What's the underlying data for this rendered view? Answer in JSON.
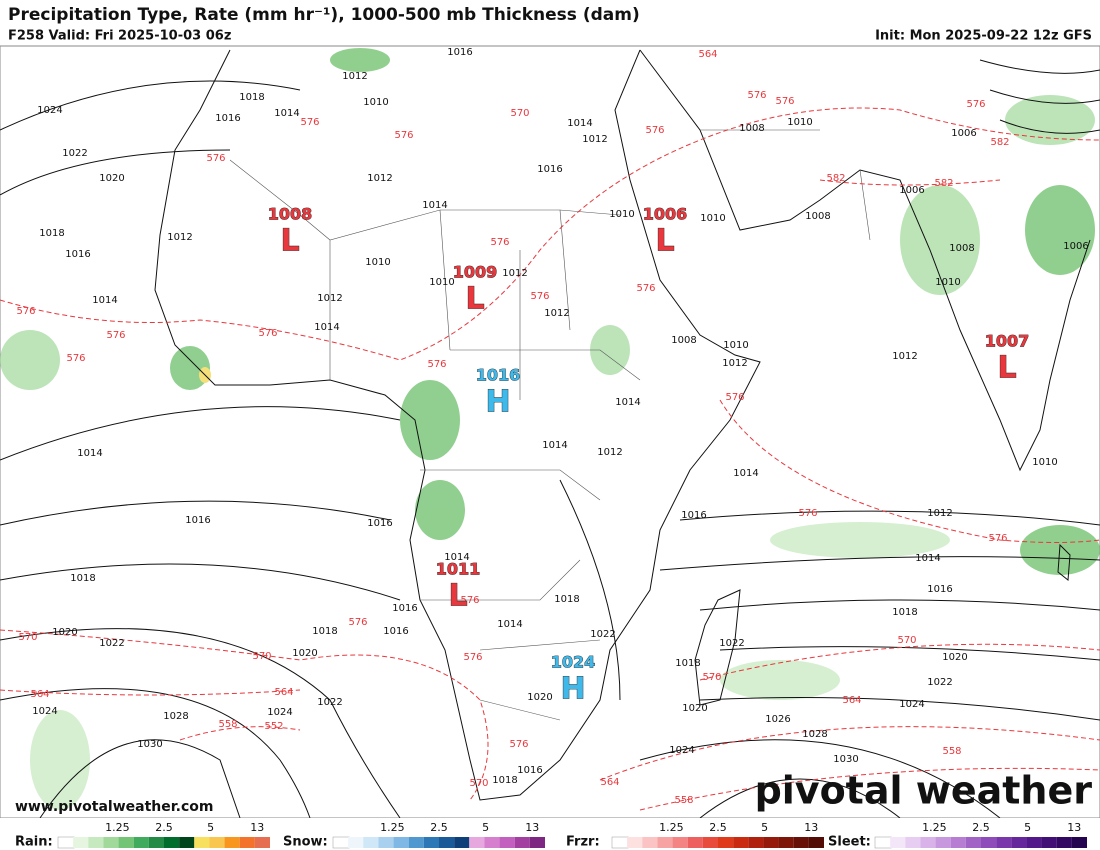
{
  "header": {
    "title": "Precipitation Type, Rate (mm hr⁻¹), 1000-500 mb Thickness (dam)",
    "valid": "F258 Valid: Fri 2025-10-03 06z",
    "init": "Init: Mon 2025-09-22 12z GFS"
  },
  "centers": [
    {
      "type": "L",
      "value": "1008"
    },
    {
      "type": "L",
      "value": "1006"
    },
    {
      "type": "L",
      "value": "1009"
    },
    {
      "type": "L",
      "value": "1007"
    },
    {
      "type": "H",
      "value": "1016"
    },
    {
      "type": "L",
      "value": "1011"
    },
    {
      "type": "H",
      "value": "1024"
    }
  ],
  "isobar_labels": [
    "1024",
    "1022",
    "1020",
    "1018",
    "1016",
    "1014",
    "1014",
    "1016",
    "1018",
    "1020",
    "1022",
    "1024",
    "1028",
    "1030",
    "1016",
    "1012",
    "1010",
    "1014",
    "1012",
    "1016",
    "1010",
    "1010",
    "1008",
    "1008",
    "1010",
    "1006",
    "1006",
    "1008",
    "1010",
    "1006",
    "1012",
    "1010",
    "1012",
    "1014",
    "1016",
    "1018",
    "1020",
    "1022",
    "1024",
    "1026",
    "1028",
    "1030",
    "1024",
    "1022",
    "1018",
    "1020",
    "1016",
    "1014",
    "1012",
    "1010",
    "1008",
    "1014",
    "1012",
    "1014",
    "1016",
    "1014",
    "1016",
    "1016",
    "1018",
    "1020",
    "1022",
    "1024",
    "1018",
    "1014",
    "1022",
    "1020",
    "1018",
    "1016",
    "1012",
    "1014",
    "1012",
    "1012",
    "1010",
    "1010",
    "1012",
    "1014",
    "1012",
    "1016",
    "1018",
    "1014"
  ],
  "thickness_labels": [
    "576",
    "576",
    "576",
    "570",
    "576",
    "576",
    "576",
    "576",
    "576",
    "576",
    "576",
    "576",
    "576",
    "576",
    "576",
    "576",
    "582",
    "582",
    "576",
    "576",
    "564",
    "576",
    "576",
    "576",
    "576",
    "576",
    "570",
    "570",
    "570",
    "570",
    "570",
    "564",
    "564",
    "564",
    "564",
    "558",
    "558",
    "558",
    "552",
    "582"
  ],
  "branding": {
    "logo": "pivotal weather",
    "url": "www.pivotalweather.com"
  },
  "legend": [
    {
      "name": "Rain:",
      "ticks": [
        "1.25",
        "2.5",
        "5",
        "13"
      ]
    },
    {
      "name": "Snow:",
      "ticks": [
        "1.25",
        "2.5",
        "5",
        "13"
      ]
    },
    {
      "name": "Frzr:",
      "ticks": [
        "1.25",
        "2.5",
        "5",
        "13"
      ]
    },
    {
      "name": "Sleet:",
      "ticks": [
        "1.25",
        "2.5",
        "5",
        "13"
      ]
    }
  ]
}
